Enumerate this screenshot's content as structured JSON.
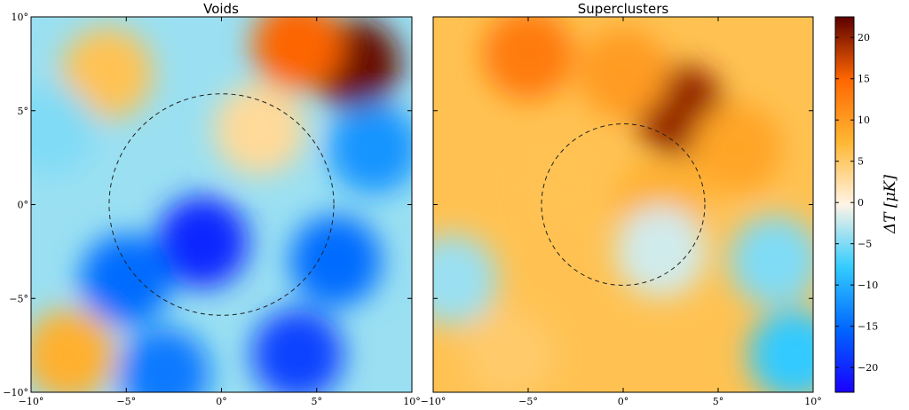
{
  "chart_data": [
    {
      "type": "heatmap",
      "title": "Voids",
      "xlim": [
        -10,
        10
      ],
      "ylim": [
        -10,
        10
      ],
      "xticks": [
        "−10°",
        "−5°",
        "0°",
        "5°",
        "10°"
      ],
      "yticks": [
        "10°",
        "5°",
        "0°",
        "−5°",
        "−10°"
      ],
      "circle": {
        "center": [
          0,
          0
        ],
        "radius": 5.9,
        "style": "dashed"
      },
      "features": [
        {
          "x": 7,
          "y": 7.5,
          "value": 22
        },
        {
          "x": 4,
          "y": 8.5,
          "value": 15
        },
        {
          "x": -6,
          "y": 7,
          "value": 6
        },
        {
          "x": 2,
          "y": 4,
          "value": 3
        },
        {
          "x": -1,
          "y": -2,
          "value": -20
        },
        {
          "x": -5,
          "y": -4,
          "value": -15
        },
        {
          "x": 6,
          "y": -3,
          "value": -15
        },
        {
          "x": 4,
          "y": -8,
          "value": -18
        },
        {
          "x": 8,
          "y": 3,
          "value": -12
        },
        {
          "x": -9,
          "y": 4,
          "value": -5
        },
        {
          "x": -8,
          "y": -8,
          "value": 8
        },
        {
          "x": -3,
          "y": -9,
          "value": -14
        }
      ]
    },
    {
      "type": "heatmap",
      "title": "Superclusters",
      "xlim": [
        -10,
        10
      ],
      "ylim": [
        -10,
        10
      ],
      "xticks": [
        "−10°",
        "−5°",
        "0°",
        "5°",
        "10°"
      ],
      "yticks": [
        "10°",
        "5°",
        "0°",
        "−5°",
        "−10°"
      ],
      "circle": {
        "center": [
          0,
          0
        ],
        "radius": 4.3,
        "style": "dashed"
      },
      "features": [
        {
          "x": 3,
          "y": 5,
          "value": 20
        },
        {
          "x": -5,
          "y": 8,
          "value": 13
        },
        {
          "x": 0,
          "y": 7,
          "value": 10
        },
        {
          "x": 6,
          "y": 3,
          "value": 9
        },
        {
          "x": 2,
          "y": 0,
          "value": 8
        },
        {
          "x": -3,
          "y": 1,
          "value": 6
        },
        {
          "x": 9,
          "y": -8,
          "value": -8
        },
        {
          "x": -9,
          "y": -4,
          "value": -4
        },
        {
          "x": 8,
          "y": -3,
          "value": -5
        },
        {
          "x": 2,
          "y": -2.5,
          "value": -2
        },
        {
          "x": -6,
          "y": -8,
          "value": 5
        }
      ]
    }
  ],
  "colorbar": {
    "label": "ΔT [μK]",
    "min": -23,
    "max": 22.5,
    "ticks": [
      20,
      15,
      10,
      5,
      0,
      -5,
      -10,
      -15,
      -20
    ],
    "tick_labels": [
      "20",
      "15",
      "10",
      "5",
      "0",
      "−5",
      "−10",
      "−15",
      "−20"
    ],
    "colors": [
      "#1a00ff",
      "#0066ff",
      "#33ccff",
      "#fff4e6",
      "#ffb733",
      "#ff6600",
      "#5c0000"
    ]
  }
}
